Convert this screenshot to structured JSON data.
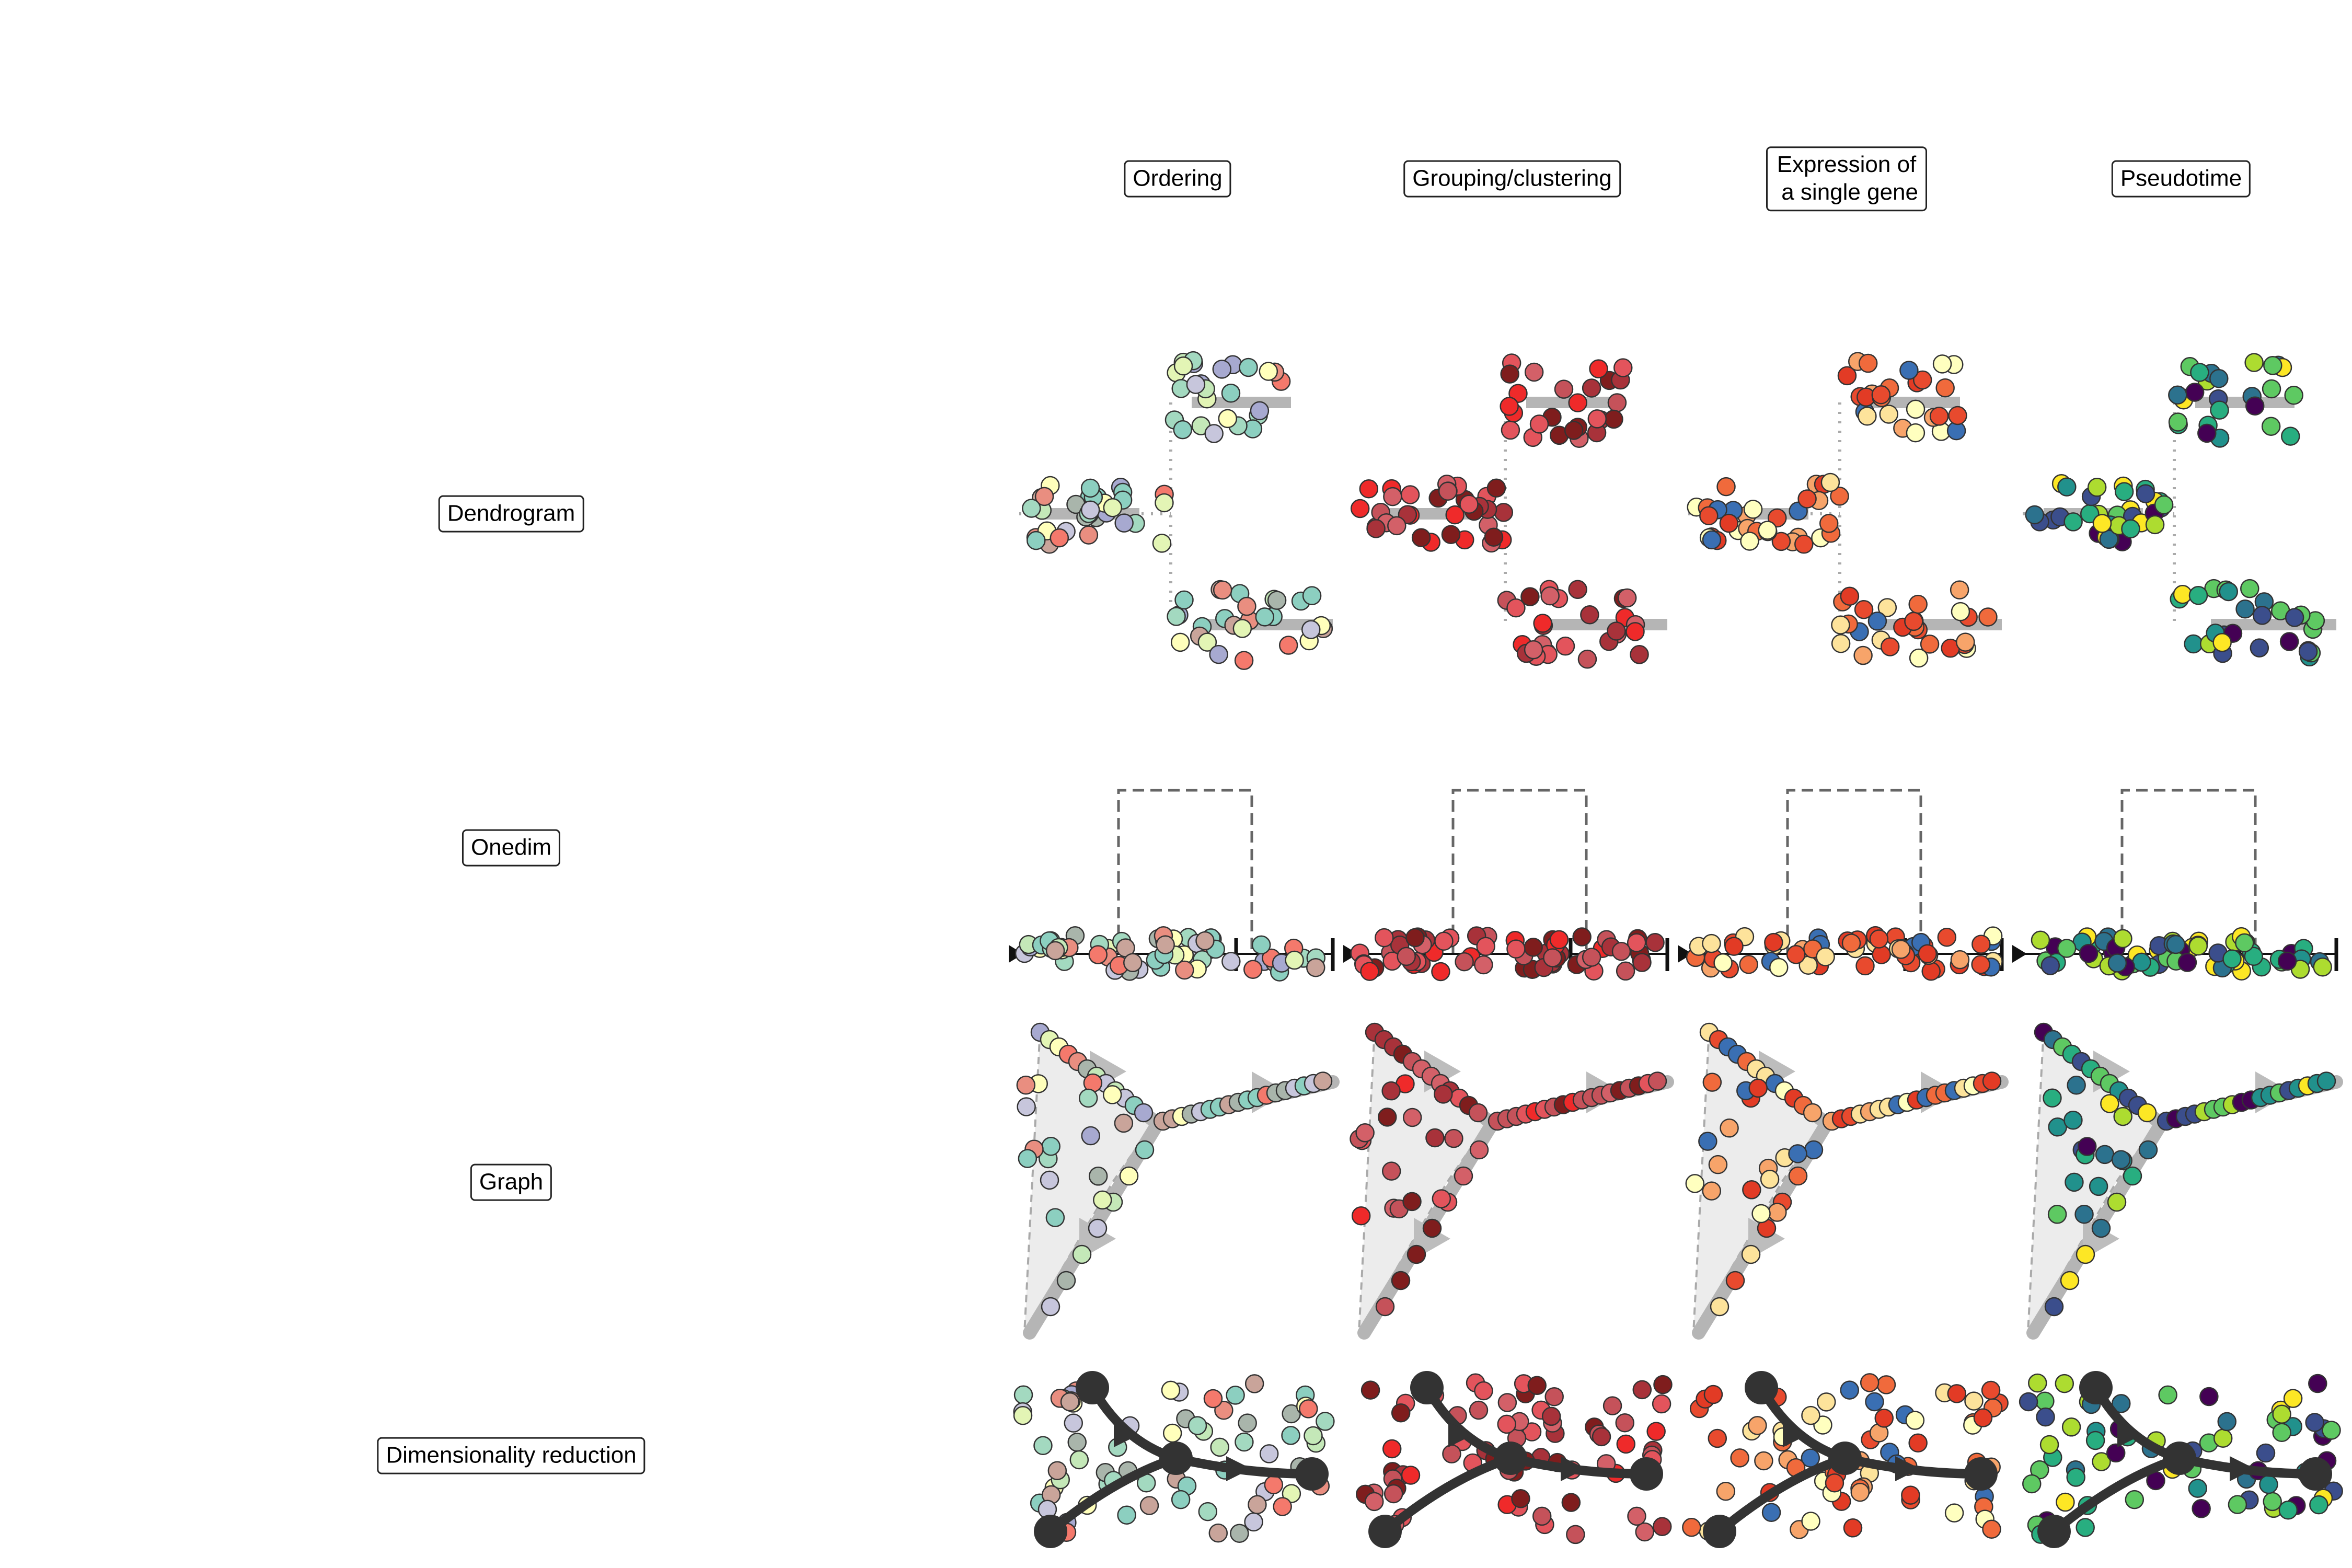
{
  "columns": [
    {
      "id": "ordering",
      "label": "Ordering"
    },
    {
      "id": "grouping",
      "label": "Grouping/clustering"
    },
    {
      "id": "expression",
      "label": "Expression of\n a single gene"
    },
    {
      "id": "pseudotime",
      "label": "Pseudotime"
    }
  ],
  "rows": [
    {
      "id": "dendrogram",
      "label": "Dendrogram"
    },
    {
      "id": "onedim",
      "label": "Onedim"
    },
    {
      "id": "graph",
      "label": "Graph"
    },
    {
      "id": "dimred",
      "label": "Dimensionality reduction"
    }
  ],
  "colors": {
    "ordering": [
      "#f4796c",
      "#e98e80",
      "#c9a49a",
      "#a9b5ab",
      "#8ccfc0",
      "#a3d9c0",
      "#c4e8b8",
      "#e3f5b5",
      "#ffffbb",
      "#c7c6dc",
      "#a7a9d0",
      "#8ccfc0"
    ],
    "grouping": [
      "#7f1d1d",
      "#a8323a",
      "#c5525a",
      "#d36068",
      "#e3545c",
      "#ef2a2a"
    ],
    "expression": [
      "#e84a2e",
      "#f06a3c",
      "#f7a46a",
      "#fde39b",
      "#ffffbf",
      "#3a6fb3",
      "#e23b25"
    ],
    "pseudotime": [
      "#440154",
      "#3b4e8c",
      "#2c728e",
      "#21918c",
      "#28ae80",
      "#5ec962",
      "#addc30",
      "#fde725"
    ],
    "edge": "#b5b5b5",
    "arrow": "#333333"
  }
}
